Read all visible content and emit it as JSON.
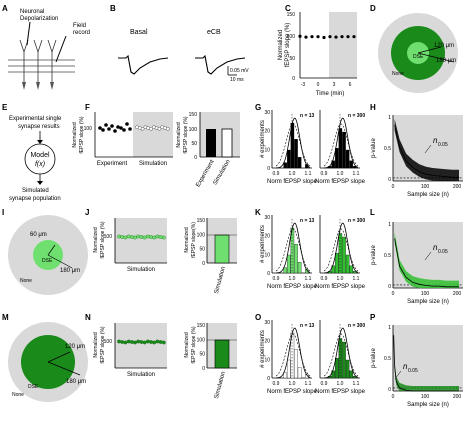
{
  "panels": [
    "A",
    "B",
    "C",
    "D",
    "E",
    "F",
    "G",
    "H",
    "I",
    "J",
    "K",
    "L",
    "M",
    "N",
    "O",
    "P"
  ],
  "A": {
    "depol": [
      "Neuronal",
      "Depolarization"
    ],
    "field": [
      "Field",
      "record"
    ]
  },
  "B": {
    "basal": "Basal",
    "ecb": "eCB",
    "scale_mv": "0.05 mV",
    "scale_ms": "10 ms"
  },
  "C": {
    "ylabel": [
      "Normalized",
      "fEPSP slope (%)"
    ],
    "xlabel": "Time (min)",
    "yticks": [
      "150",
      "100",
      "50",
      "0"
    ],
    "xticks": [
      "-3",
      "0",
      "3",
      "6"
    ]
  },
  "D": {
    "r1": "120 μm",
    "r2": "180 μm",
    "inner": "DSE",
    "outer": "None"
  },
  "E": {
    "top": [
      "Experimental single",
      "synapse results"
    ],
    "model": "Model",
    "fx": "f(x)",
    "bottom": [
      "Simulated",
      "synapse population"
    ]
  },
  "F": {
    "ylabel": [
      "Normalized",
      "fEPSP slope (%)"
    ],
    "ytick": "100",
    "xlabels": [
      "Experiment",
      "Simulation"
    ],
    "bar_x": [
      "Experiment",
      "Simulation"
    ],
    "bar_yticks": [
      "150",
      "100",
      "50",
      "0"
    ]
  },
  "G": {
    "ylabel": "# experiments",
    "xlabel": "Norm fEPSP slope",
    "n_left": "n = 13",
    "n_right": "n = 300",
    "yticks": [
      "30",
      "20",
      "10",
      "0"
    ],
    "xticks": [
      "0.9",
      "1.0",
      "1.1"
    ]
  },
  "H": {
    "ylabel": "p-value",
    "xlabel": "Sample size (n)",
    "yticks": [
      "1",
      "0.5",
      "0"
    ],
    "xticks": [
      "0",
      "100",
      "200"
    ],
    "annot": "n",
    "annot_sub": "0.05"
  },
  "I": {
    "r1": "60 μm",
    "r2": "180 μm",
    "inner": "DSE",
    "outer": "None"
  },
  "J": {
    "ylabel": [
      "Normalized",
      "fEPSP slope (%)"
    ],
    "ytick": "100",
    "xlabel": "Simulation",
    "bar_ylabel": [
      "Normalized",
      "fEPSP slope(%)"
    ],
    "bar_yticks": [
      "150",
      "100",
      "50",
      "0"
    ],
    "bar_x": "Simulation"
  },
  "K": {
    "ylabel": "# experiments",
    "xlabel": "Norm fEPSP slope",
    "n_left": "n = 13",
    "n_right": "n = 300",
    "yticks": [
      "30",
      "20",
      "10",
      "0"
    ],
    "xticks": [
      "0.9",
      "1.0",
      "1.1"
    ]
  },
  "L": {
    "ylabel": "p-value",
    "xlabel": "Sample size (n)",
    "yticks": [
      "1",
      "0.5",
      "0"
    ],
    "xticks": [
      "0",
      "100",
      "200"
    ],
    "annot": "n",
    "annot_sub": "0.05"
  },
  "M": {
    "r1": "120 μm",
    "r2": "180 μm",
    "inner": "DSE",
    "outer": "None"
  },
  "N": {
    "ylabel": [
      "Normalized",
      "fEPSP slope (%)"
    ],
    "ytick": "100",
    "xlabel": "Simulation",
    "bar_ylabel": [
      "Normalized",
      "fEPSP slope (%)"
    ],
    "bar_yticks": [
      "150",
      "100",
      "50",
      "0"
    ],
    "bar_x": "Simulation"
  },
  "O": {
    "ylabel": "# experiments",
    "xlabel": "Norm fEPSP slope",
    "n_left": "n = 13",
    "n_right": "n = 300",
    "yticks": [
      "30",
      "20",
      "10",
      "0"
    ],
    "xticks": [
      "0.9",
      "1.0",
      "1.1"
    ]
  },
  "P": {
    "ylabel": "p-value",
    "xlabel": "Sample size (n)",
    "yticks": [
      "1",
      "0.5",
      "0"
    ],
    "xticks": [
      "0",
      "100",
      "200"
    ],
    "annot": "n",
    "annot_sub": "0.05"
  },
  "colors": {
    "gray_bg": "#d9d9d9",
    "dark_green": "#1a8a1a",
    "light_green": "#6fe06f",
    "mid_green": "#2fbf2f",
    "black": "#000000"
  },
  "chart_data": [
    {
      "type": "scatter",
      "panel": "C",
      "x": [
        -3,
        -2,
        -1,
        0,
        1,
        2,
        3,
        4,
        5,
        6
      ],
      "y": [
        101,
        99,
        100,
        100,
        98,
        100,
        99,
        100,
        100,
        100
      ],
      "xlim": [
        -3,
        6
      ],
      "ylim": [
        0,
        150
      ],
      "xlabel": "Time (min)",
      "ylabel": "Normalized fEPSP slope (%)"
    },
    {
      "type": "bar",
      "panel": "F",
      "categories": [
        "Experiment",
        "Simulation"
      ],
      "values": [
        100,
        100
      ],
      "ylim": [
        0,
        150
      ]
    },
    {
      "type": "line",
      "panel": "H",
      "x": [
        5,
        20,
        40,
        60,
        80,
        100,
        120,
        140,
        160,
        180,
        200
      ],
      "y": [
        0.9,
        0.55,
        0.32,
        0.22,
        0.15,
        0.11,
        0.09,
        0.08,
        0.07,
        0.06,
        0.06
      ],
      "xlim": [
        0,
        200
      ],
      "ylim": [
        0,
        1
      ]
    },
    {
      "type": "bar",
      "panel": "J",
      "categories": [
        "Simulation"
      ],
      "values": [
        100
      ],
      "ylim": [
        0,
        150
      ]
    },
    {
      "type": "line",
      "panel": "L",
      "x": [
        5,
        20,
        40,
        60,
        80,
        100,
        120,
        140,
        160,
        180,
        200
      ],
      "y": [
        0.8,
        0.35,
        0.17,
        0.09,
        0.06,
        0.04,
        0.03,
        0.03,
        0.02,
        0.02,
        0.02
      ],
      "xlim": [
        0,
        200
      ],
      "ylim": [
        0,
        1
      ]
    },
    {
      "type": "bar",
      "panel": "N",
      "categories": [
        "Simulation"
      ],
      "values": [
        100
      ],
      "ylim": [
        0,
        150
      ]
    },
    {
      "type": "line",
      "panel": "P",
      "x": [
        2,
        5,
        10,
        20,
        40,
        60,
        100,
        150,
        200
      ],
      "y": [
        0.9,
        0.4,
        0.15,
        0.05,
        0.01,
        0.0,
        0.0,
        0.0,
        0.0
      ],
      "xlim": [
        0,
        200
      ],
      "ylim": [
        0,
        1
      ]
    }
  ]
}
